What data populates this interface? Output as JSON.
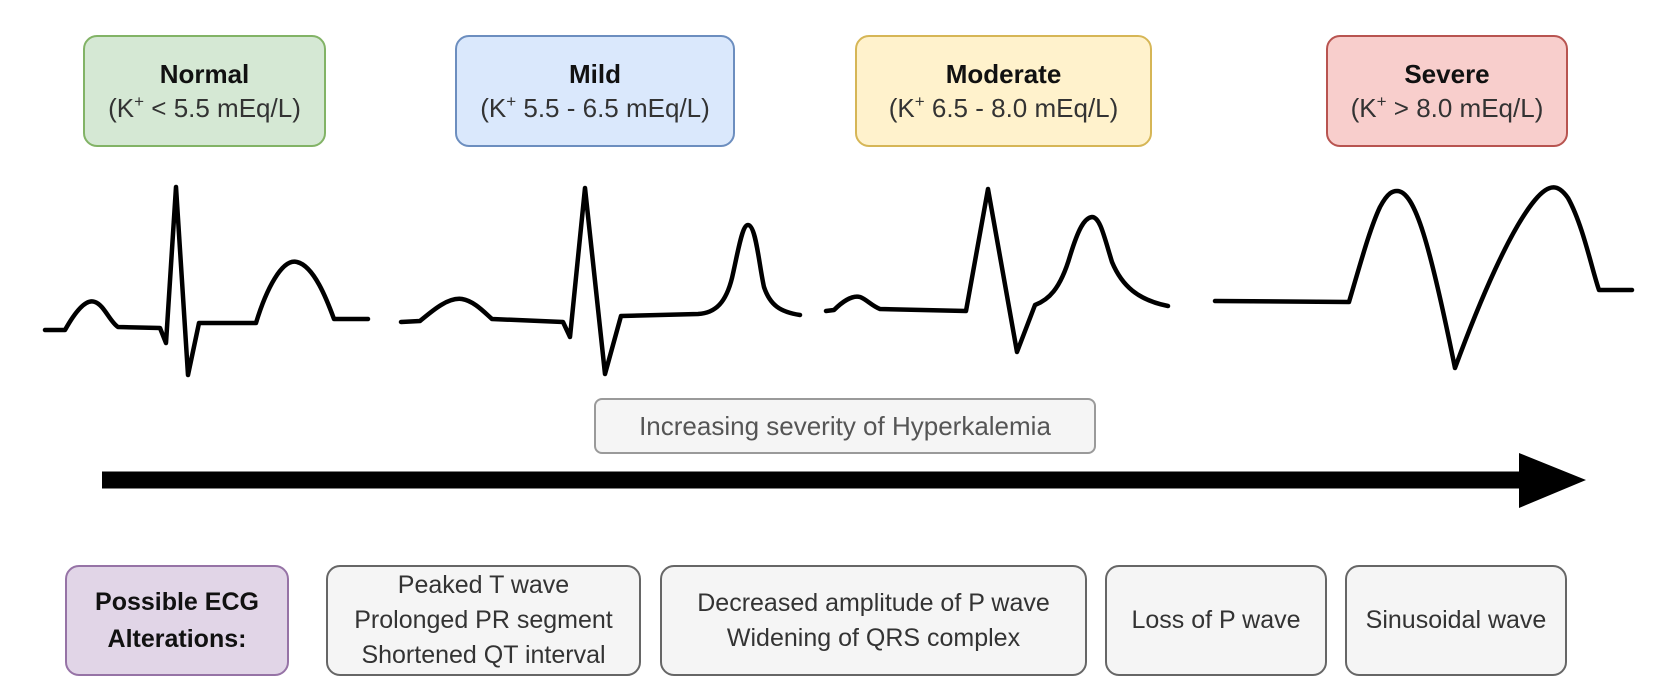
{
  "stages": [
    {
      "id": "normal",
      "title": "Normal",
      "range_prefix": "(K",
      "range_sup": "+",
      "range_suffix": " < 5.5 mEq/L)",
      "fill": "#d5e8d4",
      "stroke": "#82b366"
    },
    {
      "id": "mild",
      "title": "Mild",
      "range_prefix": "(K",
      "range_sup": "+",
      "range_suffix": " 5.5 - 6.5 mEq/L)",
      "fill": "#dae8fc",
      "stroke": "#6c8ebf"
    },
    {
      "id": "moderate",
      "title": "Moderate",
      "range_prefix": "(K",
      "range_sup": "+",
      "range_suffix": " 6.5 - 8.0 mEq/L)",
      "fill": "#fff2cc",
      "stroke": "#d6b656"
    },
    {
      "id": "severe",
      "title": "Severe",
      "range_prefix": "(K",
      "range_sup": "+",
      "range_suffix": " > 8.0 mEq/L)",
      "fill": "#f8cecc",
      "stroke": "#b85450"
    }
  ],
  "severity_label": "Increasing severity of Hyperkalemia",
  "alterations": {
    "title_line1": "Possible ECG",
    "title_line2": "Alterations:",
    "title_fill": "#e1d5e7",
    "title_stroke": "#9673a6",
    "items": [
      {
        "lines": [
          "Peaked T wave",
          "Prolonged PR segment",
          "Shortened QT interval"
        ]
      },
      {
        "lines": [
          "Decreased amplitude of P wave",
          "Widening of QRS complex"
        ]
      },
      {
        "lines": [
          "Loss of P wave"
        ]
      },
      {
        "lines": [
          "Sinusoidal wave"
        ]
      }
    ],
    "item_fill": "#f5f5f5",
    "item_stroke": "#666666"
  },
  "colors": {
    "trace": "#000000",
    "arrow": "#000000"
  }
}
